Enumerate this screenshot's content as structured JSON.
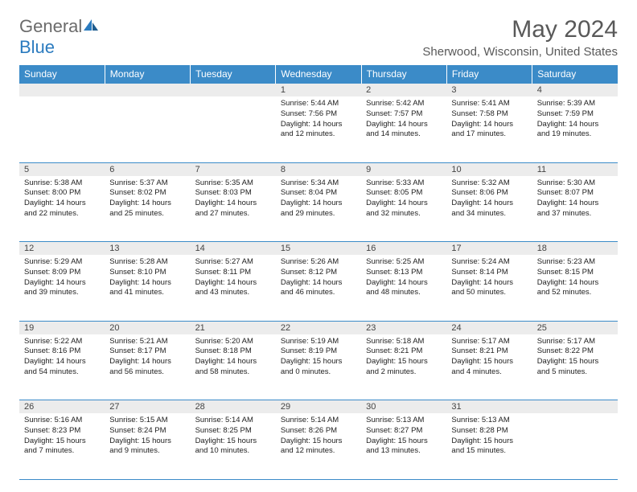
{
  "logo": {
    "text_gray": "General",
    "text_blue": "Blue"
  },
  "title": "May 2024",
  "location": "Sherwood, Wisconsin, United States",
  "colors": {
    "header_bg": "#3b8bc8",
    "header_fg": "#ffffff",
    "daynum_bg": "#ececec",
    "border": "#3b8bc8",
    "title_color": "#595959",
    "logo_gray": "#6b6b6b",
    "logo_blue": "#2b7bbf"
  },
  "weekdays": [
    "Sunday",
    "Monday",
    "Tuesday",
    "Wednesday",
    "Thursday",
    "Friday",
    "Saturday"
  ],
  "weeks": [
    [
      {
        "num": "",
        "lines": []
      },
      {
        "num": "",
        "lines": []
      },
      {
        "num": "",
        "lines": []
      },
      {
        "num": "1",
        "lines": [
          "Sunrise: 5:44 AM",
          "Sunset: 7:56 PM",
          "Daylight: 14 hours",
          "and 12 minutes."
        ]
      },
      {
        "num": "2",
        "lines": [
          "Sunrise: 5:42 AM",
          "Sunset: 7:57 PM",
          "Daylight: 14 hours",
          "and 14 minutes."
        ]
      },
      {
        "num": "3",
        "lines": [
          "Sunrise: 5:41 AM",
          "Sunset: 7:58 PM",
          "Daylight: 14 hours",
          "and 17 minutes."
        ]
      },
      {
        "num": "4",
        "lines": [
          "Sunrise: 5:39 AM",
          "Sunset: 7:59 PM",
          "Daylight: 14 hours",
          "and 19 minutes."
        ]
      }
    ],
    [
      {
        "num": "5",
        "lines": [
          "Sunrise: 5:38 AM",
          "Sunset: 8:00 PM",
          "Daylight: 14 hours",
          "and 22 minutes."
        ]
      },
      {
        "num": "6",
        "lines": [
          "Sunrise: 5:37 AM",
          "Sunset: 8:02 PM",
          "Daylight: 14 hours",
          "and 25 minutes."
        ]
      },
      {
        "num": "7",
        "lines": [
          "Sunrise: 5:35 AM",
          "Sunset: 8:03 PM",
          "Daylight: 14 hours",
          "and 27 minutes."
        ]
      },
      {
        "num": "8",
        "lines": [
          "Sunrise: 5:34 AM",
          "Sunset: 8:04 PM",
          "Daylight: 14 hours",
          "and 29 minutes."
        ]
      },
      {
        "num": "9",
        "lines": [
          "Sunrise: 5:33 AM",
          "Sunset: 8:05 PM",
          "Daylight: 14 hours",
          "and 32 minutes."
        ]
      },
      {
        "num": "10",
        "lines": [
          "Sunrise: 5:32 AM",
          "Sunset: 8:06 PM",
          "Daylight: 14 hours",
          "and 34 minutes."
        ]
      },
      {
        "num": "11",
        "lines": [
          "Sunrise: 5:30 AM",
          "Sunset: 8:07 PM",
          "Daylight: 14 hours",
          "and 37 minutes."
        ]
      }
    ],
    [
      {
        "num": "12",
        "lines": [
          "Sunrise: 5:29 AM",
          "Sunset: 8:09 PM",
          "Daylight: 14 hours",
          "and 39 minutes."
        ]
      },
      {
        "num": "13",
        "lines": [
          "Sunrise: 5:28 AM",
          "Sunset: 8:10 PM",
          "Daylight: 14 hours",
          "and 41 minutes."
        ]
      },
      {
        "num": "14",
        "lines": [
          "Sunrise: 5:27 AM",
          "Sunset: 8:11 PM",
          "Daylight: 14 hours",
          "and 43 minutes."
        ]
      },
      {
        "num": "15",
        "lines": [
          "Sunrise: 5:26 AM",
          "Sunset: 8:12 PM",
          "Daylight: 14 hours",
          "and 46 minutes."
        ]
      },
      {
        "num": "16",
        "lines": [
          "Sunrise: 5:25 AM",
          "Sunset: 8:13 PM",
          "Daylight: 14 hours",
          "and 48 minutes."
        ]
      },
      {
        "num": "17",
        "lines": [
          "Sunrise: 5:24 AM",
          "Sunset: 8:14 PM",
          "Daylight: 14 hours",
          "and 50 minutes."
        ]
      },
      {
        "num": "18",
        "lines": [
          "Sunrise: 5:23 AM",
          "Sunset: 8:15 PM",
          "Daylight: 14 hours",
          "and 52 minutes."
        ]
      }
    ],
    [
      {
        "num": "19",
        "lines": [
          "Sunrise: 5:22 AM",
          "Sunset: 8:16 PM",
          "Daylight: 14 hours",
          "and 54 minutes."
        ]
      },
      {
        "num": "20",
        "lines": [
          "Sunrise: 5:21 AM",
          "Sunset: 8:17 PM",
          "Daylight: 14 hours",
          "and 56 minutes."
        ]
      },
      {
        "num": "21",
        "lines": [
          "Sunrise: 5:20 AM",
          "Sunset: 8:18 PM",
          "Daylight: 14 hours",
          "and 58 minutes."
        ]
      },
      {
        "num": "22",
        "lines": [
          "Sunrise: 5:19 AM",
          "Sunset: 8:19 PM",
          "Daylight: 15 hours",
          "and 0 minutes."
        ]
      },
      {
        "num": "23",
        "lines": [
          "Sunrise: 5:18 AM",
          "Sunset: 8:21 PM",
          "Daylight: 15 hours",
          "and 2 minutes."
        ]
      },
      {
        "num": "24",
        "lines": [
          "Sunrise: 5:17 AM",
          "Sunset: 8:21 PM",
          "Daylight: 15 hours",
          "and 4 minutes."
        ]
      },
      {
        "num": "25",
        "lines": [
          "Sunrise: 5:17 AM",
          "Sunset: 8:22 PM",
          "Daylight: 15 hours",
          "and 5 minutes."
        ]
      }
    ],
    [
      {
        "num": "26",
        "lines": [
          "Sunrise: 5:16 AM",
          "Sunset: 8:23 PM",
          "Daylight: 15 hours",
          "and 7 minutes."
        ]
      },
      {
        "num": "27",
        "lines": [
          "Sunrise: 5:15 AM",
          "Sunset: 8:24 PM",
          "Daylight: 15 hours",
          "and 9 minutes."
        ]
      },
      {
        "num": "28",
        "lines": [
          "Sunrise: 5:14 AM",
          "Sunset: 8:25 PM",
          "Daylight: 15 hours",
          "and 10 minutes."
        ]
      },
      {
        "num": "29",
        "lines": [
          "Sunrise: 5:14 AM",
          "Sunset: 8:26 PM",
          "Daylight: 15 hours",
          "and 12 minutes."
        ]
      },
      {
        "num": "30",
        "lines": [
          "Sunrise: 5:13 AM",
          "Sunset: 8:27 PM",
          "Daylight: 15 hours",
          "and 13 minutes."
        ]
      },
      {
        "num": "31",
        "lines": [
          "Sunrise: 5:13 AM",
          "Sunset: 8:28 PM",
          "Daylight: 15 hours",
          "and 15 minutes."
        ]
      },
      {
        "num": "",
        "lines": []
      }
    ]
  ]
}
